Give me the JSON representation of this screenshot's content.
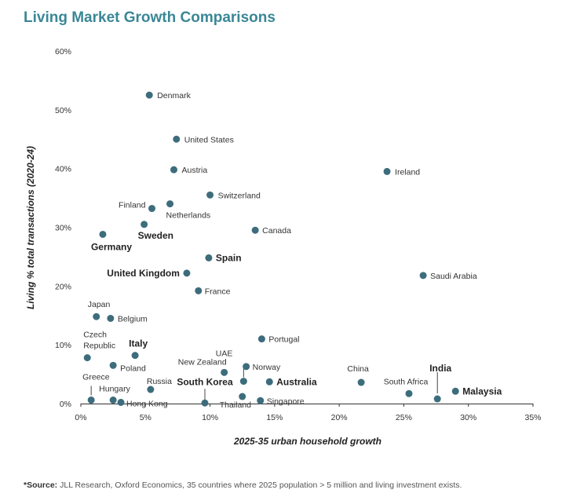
{
  "title": "Living Market Growth Comparisons",
  "source_prefix": "*Source:",
  "source_text": " JLL Research, Oxford Economics, 35 countries where 2025 population > 5 million and living investment exists.",
  "chart_data": {
    "type": "scatter",
    "xlabel": "2025-35 urban household growth",
    "ylabel": "Living % total transactions (2020-24)",
    "xlim": [
      0,
      35
    ],
    "ylim": [
      0,
      60
    ],
    "xticks": [
      "0%",
      "5%",
      "10%",
      "15%",
      "20%",
      "25%",
      "30%",
      "35%"
    ],
    "yticks": [
      "0%",
      "10%",
      "20%",
      "30%",
      "40%",
      "50%",
      "60%"
    ],
    "grid": false,
    "marker_color": "#3d6d7c",
    "points": [
      {
        "label": "Denmark",
        "x": 5.3,
        "y": 52.5
      },
      {
        "label": "United States",
        "x": 7.4,
        "y": 45.0
      },
      {
        "label": "Austria",
        "x": 7.2,
        "y": 39.8
      },
      {
        "label": "Ireland",
        "x": 23.7,
        "y": 39.5
      },
      {
        "label": "Switzerland",
        "x": 10.0,
        "y": 35.5
      },
      {
        "label": "Finland",
        "x": 5.5,
        "y": 33.2
      },
      {
        "label": "Netherlands",
        "x": 6.9,
        "y": 34.0
      },
      {
        "label": "Canada",
        "x": 13.5,
        "y": 29.5
      },
      {
        "label": "Sweden",
        "x": 4.9,
        "y": 30.5,
        "bold": true
      },
      {
        "label": "Germany",
        "x": 1.7,
        "y": 28.8,
        "bold": true
      },
      {
        "label": "Spain",
        "x": 9.9,
        "y": 24.8,
        "bold": true
      },
      {
        "label": "United Kingdom",
        "x": 8.2,
        "y": 22.2,
        "bold": true
      },
      {
        "label": "Saudi Arabia",
        "x": 26.5,
        "y": 21.8
      },
      {
        "label": "France",
        "x": 9.1,
        "y": 19.2
      },
      {
        "label": "Japan",
        "x": 1.2,
        "y": 14.8
      },
      {
        "label": "Belgium",
        "x": 2.3,
        "y": 14.5
      },
      {
        "label": "Portugal",
        "x": 14.0,
        "y": 11.0
      },
      {
        "label": "Czech Republic",
        "x": 0.5,
        "y": 7.8
      },
      {
        "label": "Italy",
        "x": 4.2,
        "y": 8.2,
        "bold": true
      },
      {
        "label": "Poland",
        "x": 2.5,
        "y": 6.5
      },
      {
        "label": "UAE",
        "x": 12.6,
        "y": 3.8
      },
      {
        "label": "Norway",
        "x": 12.8,
        "y": 6.3
      },
      {
        "label": "New Zealand",
        "x": 11.1,
        "y": 5.3
      },
      {
        "label": "China",
        "x": 21.7,
        "y": 3.6
      },
      {
        "label": "India",
        "x": 27.6,
        "y": 0.8,
        "bold": true
      },
      {
        "label": "Greece",
        "x": 0.8,
        "y": 0.6
      },
      {
        "label": "Hungary",
        "x": 2.5,
        "y": 0.6
      },
      {
        "label": "Hong Kong",
        "x": 3.1,
        "y": 0.2
      },
      {
        "label": "Russia",
        "x": 5.4,
        "y": 2.4
      },
      {
        "label": "South Korea",
        "x": 9.6,
        "y": 0.1,
        "bold": true
      },
      {
        "label": "Thailand",
        "x": 12.5,
        "y": 1.2
      },
      {
        "label": "Singapore",
        "x": 13.9,
        "y": 0.5
      },
      {
        "label": "Australia",
        "x": 14.6,
        "y": 3.7,
        "bold": true
      },
      {
        "label": "South Africa",
        "x": 25.4,
        "y": 1.7
      },
      {
        "label": "Malaysia",
        "x": 29.0,
        "y": 2.1,
        "bold": true
      }
    ]
  }
}
